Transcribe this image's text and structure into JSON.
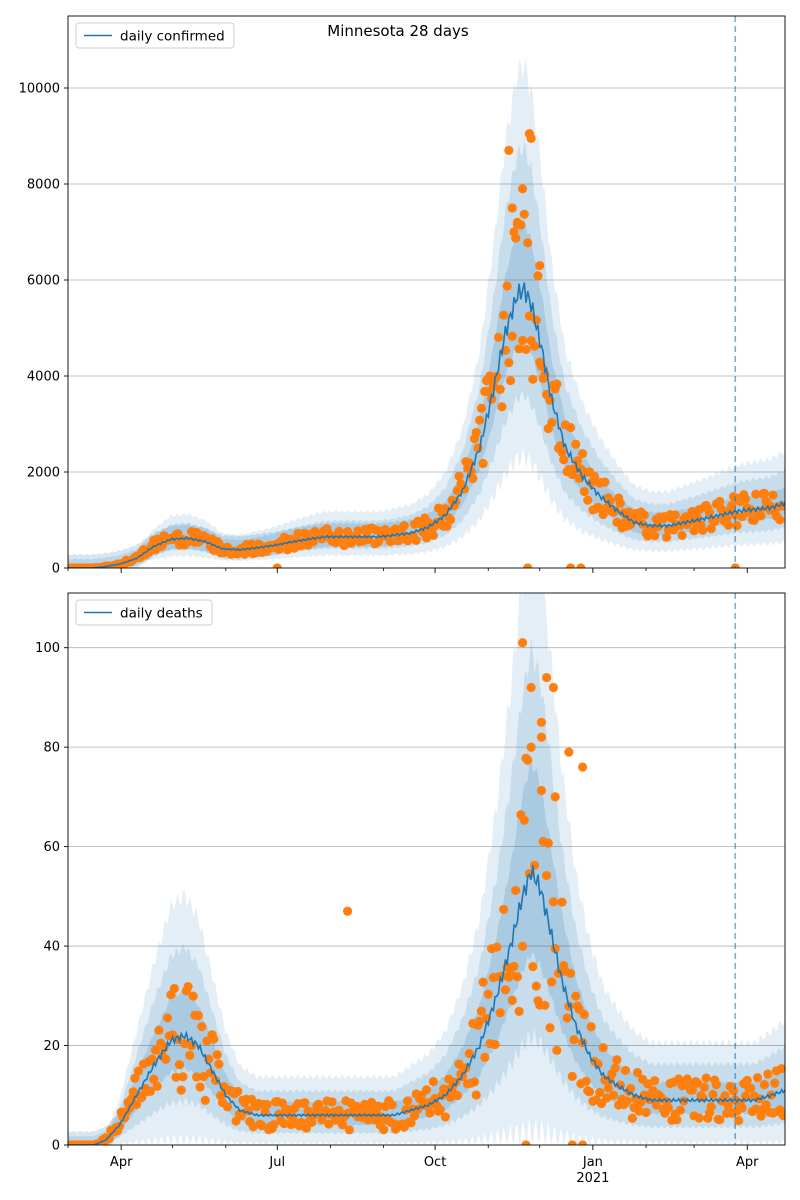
{
  "figure": {
    "title": "Minnesota 28 days"
  },
  "colors": {
    "line": "#1f77b4",
    "band": "#1f77b4",
    "points": "#ff7f0e",
    "grid": "#b0b0b0",
    "axis": "#000000"
  },
  "x_axis": {
    "ticks": [
      {
        "label": "Apr",
        "day": 31
      },
      {
        "label": "Jul",
        "day": 122
      },
      {
        "label": "Oct",
        "day": 214
      },
      {
        "label": "Jan",
        "day": 306
      },
      {
        "label": "Apr",
        "day": 396
      }
    ],
    "year_label": {
      "text": "2021",
      "day": 306
    },
    "minor_ticks": [
      0,
      61,
      92,
      153,
      184,
      245,
      275,
      337,
      365
    ]
  },
  "chart_data": [
    {
      "type": "line",
      "legend": "daily confirmed",
      "legend_placement": "top-left",
      "x_unit": "days since Mar 1 2020",
      "xlim": [
        0,
        418
      ],
      "ylim": [
        0,
        11500
      ],
      "yticks": [
        0,
        2000,
        4000,
        6000,
        8000,
        10000
      ],
      "grid": true,
      "vline_day": 389,
      "line_knots": [
        [
          0,
          0
        ],
        [
          14,
          0
        ],
        [
          20,
          20
        ],
        [
          30,
          80
        ],
        [
          40,
          200
        ],
        [
          50,
          450
        ],
        [
          60,
          600
        ],
        [
          70,
          620
        ],
        [
          80,
          550
        ],
        [
          90,
          400
        ],
        [
          100,
          380
        ],
        [
          110,
          420
        ],
        [
          120,
          470
        ],
        [
          130,
          540
        ],
        [
          140,
          600
        ],
        [
          150,
          650
        ],
        [
          160,
          650
        ],
        [
          170,
          650
        ],
        [
          180,
          650
        ],
        [
          190,
          680
        ],
        [
          200,
          730
        ],
        [
          210,
          850
        ],
        [
          220,
          1100
        ],
        [
          230,
          1600
        ],
        [
          240,
          2500
        ],
        [
          248,
          3700
        ],
        [
          255,
          4900
        ],
        [
          262,
          5700
        ],
        [
          266,
          5800
        ],
        [
          270,
          5500
        ],
        [
          276,
          4600
        ],
        [
          282,
          3500
        ],
        [
          290,
          2500
        ],
        [
          300,
          1900
        ],
        [
          310,
          1500
        ],
        [
          320,
          1200
        ],
        [
          330,
          950
        ],
        [
          340,
          880
        ],
        [
          350,
          880
        ],
        [
          360,
          950
        ],
        [
          370,
          1020
        ],
        [
          380,
          1100
        ],
        [
          390,
          1180
        ],
        [
          400,
          1220
        ],
        [
          410,
          1260
        ],
        [
          418,
          1350
        ]
      ],
      "bands": [
        {
          "width": 0.6,
          "opacity": 0.12
        },
        {
          "width": 0.38,
          "opacity": 0.14
        },
        {
          "width": 0.18,
          "opacity": 0.18
        }
      ],
      "points_spread": 0.28,
      "outlier_points": [
        [
          122,
          0
        ],
        [
          268,
          0
        ],
        [
          293,
          0
        ],
        [
          299,
          0
        ],
        [
          389,
          0
        ]
      ],
      "high_points": [
        [
          257,
          8700
        ],
        [
          265,
          7900
        ],
        [
          269,
          9050
        ],
        [
          270,
          8950
        ],
        [
          259,
          7500
        ],
        [
          262,
          7200
        ],
        [
          275,
          6300
        ]
      ]
    },
    {
      "type": "line",
      "legend": "daily deaths",
      "legend_placement": "top-left",
      "x_unit": "days since Mar 1 2020",
      "xlim": [
        0,
        418
      ],
      "ylim": [
        0,
        111
      ],
      "yticks": [
        0,
        20,
        40,
        60,
        80,
        100
      ],
      "grid": true,
      "vline_day": 389,
      "line_knots": [
        [
          0,
          0
        ],
        [
          15,
          0
        ],
        [
          22,
          1
        ],
        [
          30,
          4
        ],
        [
          40,
          10
        ],
        [
          50,
          16
        ],
        [
          60,
          21
        ],
        [
          68,
          22
        ],
        [
          76,
          20
        ],
        [
          84,
          15
        ],
        [
          92,
          10
        ],
        [
          100,
          7
        ],
        [
          110,
          6
        ],
        [
          120,
          6
        ],
        [
          130,
          6
        ],
        [
          140,
          6
        ],
        [
          150,
          6
        ],
        [
          160,
          6
        ],
        [
          170,
          6
        ],
        [
          180,
          6
        ],
        [
          190,
          6
        ],
        [
          200,
          7
        ],
        [
          210,
          8
        ],
        [
          220,
          10
        ],
        [
          230,
          14
        ],
        [
          240,
          20
        ],
        [
          250,
          30
        ],
        [
          258,
          40
        ],
        [
          265,
          50
        ],
        [
          270,
          55
        ],
        [
          275,
          52
        ],
        [
          280,
          45
        ],
        [
          288,
          33
        ],
        [
          296,
          24
        ],
        [
          304,
          18
        ],
        [
          312,
          14
        ],
        [
          320,
          12
        ],
        [
          330,
          10
        ],
        [
          340,
          9
        ],
        [
          350,
          9
        ],
        [
          360,
          9
        ],
        [
          370,
          9
        ],
        [
          380,
          9
        ],
        [
          390,
          9
        ],
        [
          400,
          9
        ],
        [
          410,
          10
        ],
        [
          418,
          11
        ]
      ],
      "bands": [
        {
          "width": 0.95,
          "opacity": 0.12
        },
        {
          "width": 0.6,
          "opacity": 0.14
        },
        {
          "width": 0.3,
          "opacity": 0.18
        }
      ],
      "points_spread": 0.5,
      "outlier_points": [
        [
          163,
          47
        ],
        [
          265,
          101
        ],
        [
          267,
          0
        ],
        [
          294,
          0
        ],
        [
          300,
          0
        ]
      ],
      "high_points": [
        [
          270,
          92
        ],
        [
          279,
          94
        ],
        [
          283,
          92
        ],
        [
          276,
          85
        ],
        [
          292,
          79
        ],
        [
          300,
          76
        ],
        [
          276,
          82
        ],
        [
          284,
          70
        ]
      ]
    }
  ]
}
